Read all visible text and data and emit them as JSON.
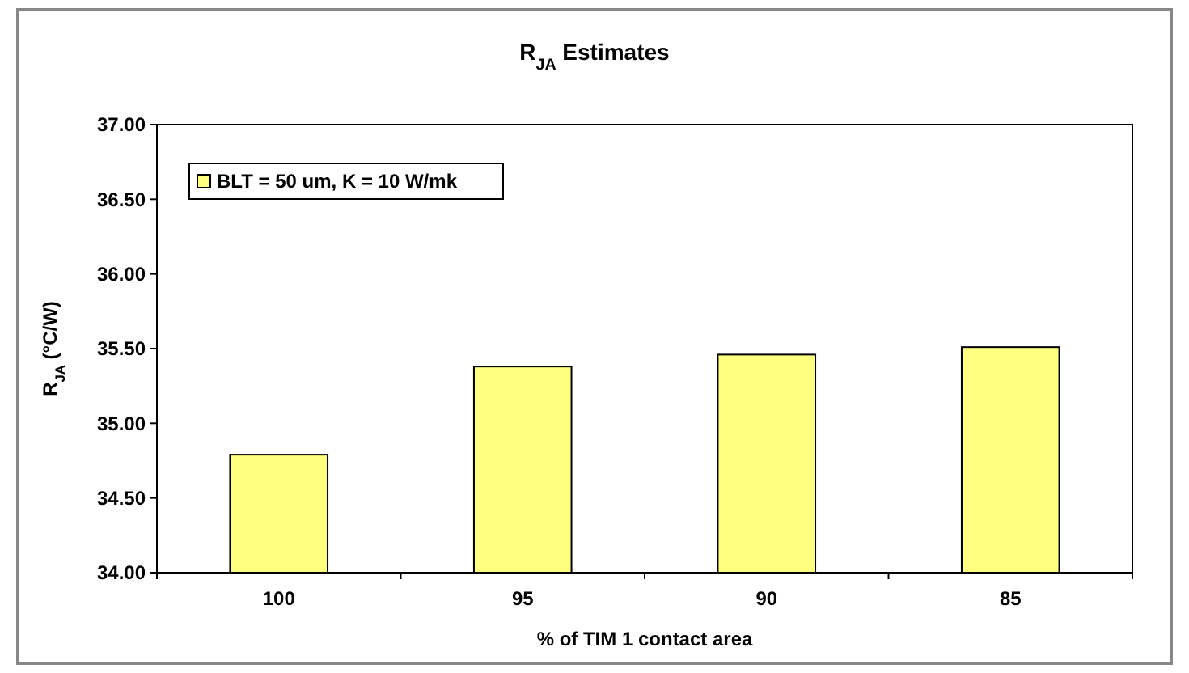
{
  "chart_data": {
    "type": "bar",
    "title": "R$_{JA}$ Estimates",
    "xlabel": "% of TIM 1 contact area",
    "ylabel": "R$_{JA}$ (°C/W)",
    "categories": [
      "100",
      "95",
      "90",
      "85"
    ],
    "series": [
      {
        "name": "BLT = 50 um, K = 10 W/mk",
        "color": "#ffff80",
        "values": [
          34.79,
          35.38,
          35.46,
          35.51
        ]
      }
    ],
    "ylim": [
      34,
      37
    ],
    "yticks": [
      {
        "value": 34,
        "label": "34.00"
      },
      {
        "value": 34.5,
        "label": "34.50"
      },
      {
        "value": 35,
        "label": "35.00"
      },
      {
        "value": 35.5,
        "label": "35.50"
      },
      {
        "value": 36,
        "label": "36.00"
      },
      {
        "value": 36.5,
        "label": "36.50"
      },
      {
        "value": 37,
        "label": "37.00"
      }
    ],
    "grid": false,
    "legend": "top left"
  }
}
